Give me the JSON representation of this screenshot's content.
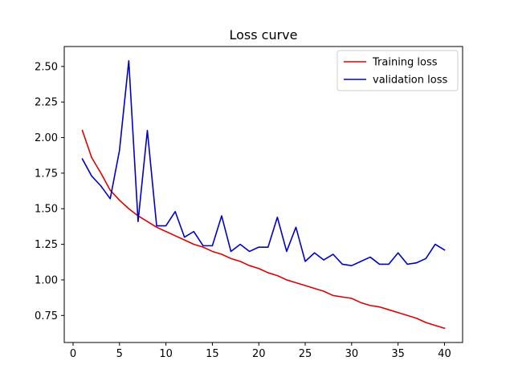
{
  "chart_data": {
    "type": "line",
    "title": "Loss curve",
    "xlabel": "",
    "ylabel": "",
    "xlim": [
      -0.95,
      41.95
    ],
    "ylim": [
      0.56,
      2.64
    ],
    "xticks": [
      0,
      5,
      10,
      15,
      20,
      25,
      30,
      35,
      40
    ],
    "xtick_labels": [
      "0",
      "5",
      "10",
      "15",
      "20",
      "25",
      "30",
      "35",
      "40"
    ],
    "yticks": [
      0.75,
      1.0,
      1.25,
      1.5,
      1.75,
      2.0,
      2.25,
      2.5
    ],
    "ytick_labels": [
      "0.75",
      "1.00",
      "1.25",
      "1.50",
      "1.75",
      "2.00",
      "2.25",
      "2.50"
    ],
    "grid": false,
    "legend_position": "top-right",
    "x": [
      1,
      2,
      3,
      4,
      5,
      6,
      7,
      8,
      9,
      10,
      11,
      12,
      13,
      14,
      15,
      16,
      17,
      18,
      19,
      20,
      21,
      22,
      23,
      24,
      25,
      26,
      27,
      28,
      29,
      30,
      31,
      32,
      33,
      34,
      35,
      36,
      37,
      38,
      39,
      40
    ],
    "series": [
      {
        "name": "Training loss",
        "color": "#e00000",
        "values": [
          2.05,
          1.86,
          1.75,
          1.63,
          1.56,
          1.5,
          1.45,
          1.41,
          1.37,
          1.34,
          1.31,
          1.28,
          1.25,
          1.23,
          1.2,
          1.18,
          1.15,
          1.13,
          1.1,
          1.08,
          1.05,
          1.03,
          1.0,
          0.98,
          0.96,
          0.94,
          0.92,
          0.89,
          0.88,
          0.87,
          0.84,
          0.82,
          0.81,
          0.79,
          0.77,
          0.75,
          0.73,
          0.7,
          0.68,
          0.66
        ]
      },
      {
        "name": "validation loss",
        "color": "#0000cc",
        "values": [
          1.85,
          1.73,
          1.66,
          1.57,
          1.91,
          2.54,
          1.41,
          2.05,
          1.38,
          1.38,
          1.48,
          1.3,
          1.34,
          1.24,
          1.24,
          1.45,
          1.2,
          1.25,
          1.2,
          1.23,
          1.23,
          1.44,
          1.2,
          1.37,
          1.13,
          1.19,
          1.14,
          1.18,
          1.11,
          1.1,
          1.13,
          1.16,
          1.11,
          1.11,
          1.19,
          1.11,
          1.12,
          1.15,
          1.25,
          1.21
        ]
      }
    ]
  }
}
